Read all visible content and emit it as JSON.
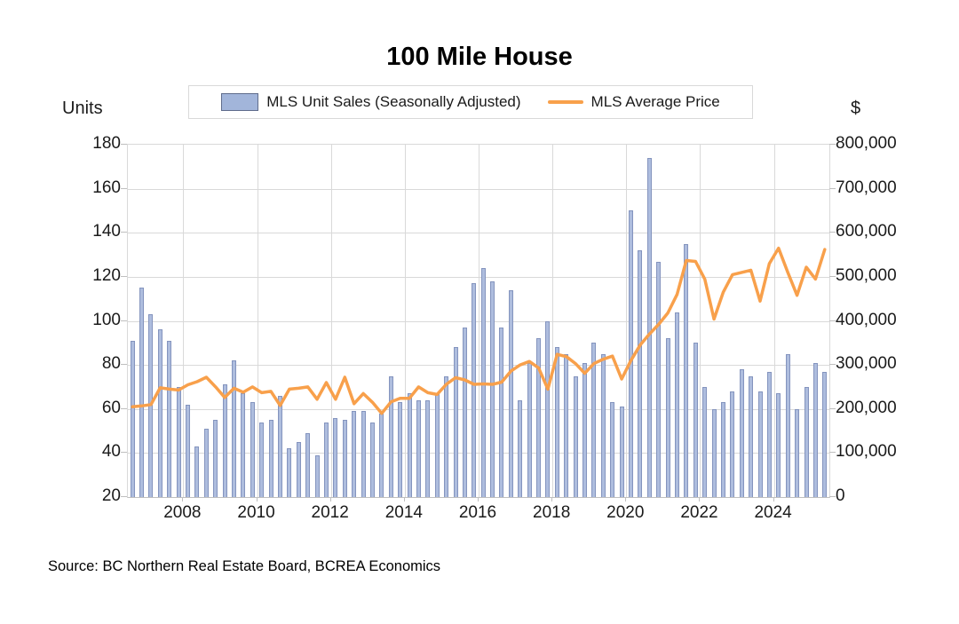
{
  "title": "100 Mile House",
  "legend": {
    "items": [
      {
        "label": "MLS Unit Sales (Seasonally Adjusted)",
        "type": "bar-swatch"
      },
      {
        "label": "MLS Average Price",
        "type": "line-swatch"
      }
    ]
  },
  "left_axis": {
    "title": "Units",
    "tick_labels": [
      "180",
      "160",
      "140",
      "120",
      "100",
      "80",
      "60",
      "40",
      "20"
    ]
  },
  "right_axis": {
    "title": "$",
    "tick_labels": [
      "800,000",
      "700,000",
      "600,000",
      "500,000",
      "400,000",
      "300,000",
      "200,000",
      "100,000",
      "0"
    ]
  },
  "x_axis": {
    "year_labels": [
      "2008",
      "2010",
      "2012",
      "2014",
      "2016",
      "2018",
      "2020",
      "2022",
      "2024"
    ]
  },
  "source": "Source:  BC Northern Real Estate Board, BCREA Economics",
  "colors": {
    "bar_fill": "#aebdde",
    "bar_border": "#8494be",
    "legend_swatch_fill": "#a2b5da",
    "legend_swatch_border": "#5f6c8c",
    "line": "#f8a04b",
    "gridline": "#d9d9d9",
    "axis_line": "#bfbfbf"
  },
  "chart_data": {
    "type": "bar",
    "subtype": "combo-bar-line-dual-axis",
    "title": "100 Mile House",
    "x": [
      "2006Q3",
      "2006Q4",
      "2007Q1",
      "2007Q2",
      "2007Q3",
      "2007Q4",
      "2008Q1",
      "2008Q2",
      "2008Q3",
      "2008Q4",
      "2009Q1",
      "2009Q2",
      "2009Q3",
      "2009Q4",
      "2010Q1",
      "2010Q2",
      "2010Q3",
      "2010Q4",
      "2011Q1",
      "2011Q2",
      "2011Q3",
      "2011Q4",
      "2012Q1",
      "2012Q2",
      "2012Q3",
      "2012Q4",
      "2013Q1",
      "2013Q2",
      "2013Q3",
      "2013Q4",
      "2014Q1",
      "2014Q2",
      "2014Q3",
      "2014Q4",
      "2015Q1",
      "2015Q2",
      "2015Q3",
      "2015Q4",
      "2016Q1",
      "2016Q2",
      "2016Q3",
      "2016Q4",
      "2017Q1",
      "2017Q2",
      "2017Q3",
      "2017Q4",
      "2018Q1",
      "2018Q2",
      "2018Q3",
      "2018Q4",
      "2019Q1",
      "2019Q2",
      "2019Q3",
      "2019Q4",
      "2020Q1",
      "2020Q2",
      "2020Q3",
      "2020Q4",
      "2021Q1",
      "2021Q2",
      "2021Q3",
      "2021Q4",
      "2022Q1",
      "2022Q2",
      "2022Q3",
      "2022Q4",
      "2023Q1",
      "2023Q2",
      "2023Q3",
      "2023Q4",
      "2024Q1",
      "2024Q2",
      "2024Q3",
      "2024Q4",
      "2025Q1",
      "2025Q2"
    ],
    "series": [
      {
        "name": "MLS Unit Sales (Seasonally Adjusted)",
        "type": "bar",
        "axis": "left",
        "values": [
          91,
          115,
          103,
          96,
          91,
          70,
          62,
          43,
          51,
          55,
          71,
          82,
          67,
          63,
          54,
          55,
          66,
          42,
          45,
          49,
          39,
          54,
          56,
          55,
          59,
          59,
          54,
          58,
          75,
          63,
          67,
          64,
          64,
          67,
          75,
          88,
          97,
          117,
          124,
          118,
          97,
          114,
          64,
          81,
          92,
          100,
          88,
          85,
          75,
          81,
          90,
          85,
          63,
          61,
          150,
          132,
          174,
          127,
          92,
          104,
          135,
          90,
          70,
          60,
          63,
          68,
          78,
          75,
          68,
          77,
          67,
          85,
          60,
          70,
          81,
          77
        ]
      },
      {
        "name": "MLS Average Price",
        "type": "line",
        "axis": "right",
        "values": [
          205000,
          207000,
          210000,
          248000,
          245000,
          243000,
          255000,
          262000,
          272000,
          250000,
          226000,
          247000,
          238000,
          250000,
          237000,
          240000,
          208000,
          245000,
          247000,
          250000,
          222000,
          260000,
          222000,
          272000,
          212000,
          235000,
          215000,
          190000,
          216000,
          224000,
          224000,
          250000,
          237000,
          233000,
          256000,
          271000,
          266000,
          256000,
          257000,
          256000,
          261000,
          286000,
          300000,
          308000,
          293000,
          245000,
          324000,
          319000,
          303000,
          281000,
          303000,
          313000,
          320000,
          268000,
          310000,
          345000,
          370000,
          392000,
          418000,
          460000,
          537000,
          535000,
          495000,
          404000,
          465000,
          505000,
          510000,
          515000,
          445000,
          530000,
          565000,
          510000,
          458000,
          522000,
          495000,
          562000
        ]
      }
    ],
    "left_ylabel": "Units",
    "right_ylabel": "$",
    "left_ylim": [
      20,
      180
    ],
    "right_ylim": [
      0,
      800000
    ],
    "grid": true,
    "legend_position": "top"
  }
}
